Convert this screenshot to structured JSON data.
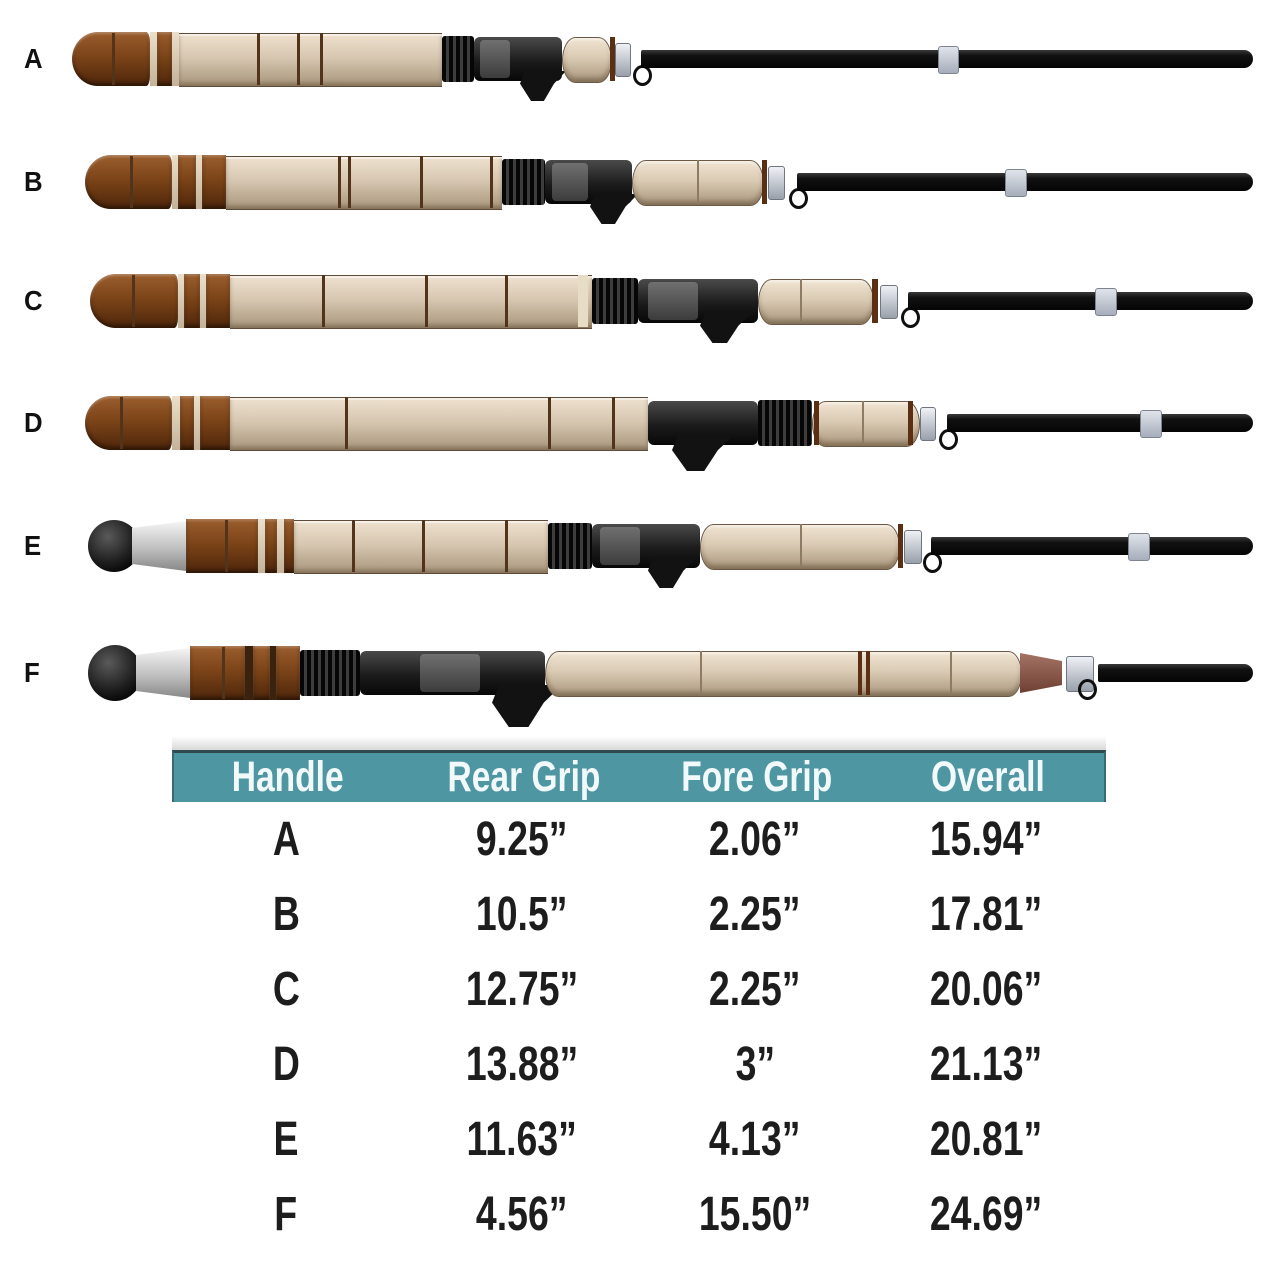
{
  "rods": {
    "labels": [
      "A",
      "B",
      "C",
      "D",
      "E",
      "F"
    ]
  },
  "table": {
    "columns": [
      "Handle",
      "Rear Grip",
      "Fore Grip",
      "Overall"
    ],
    "rows": [
      [
        "A",
        "9.25”",
        "2.06”",
        "15.94”"
      ],
      [
        "B",
        "10.5”",
        "2.25”",
        "17.81”"
      ],
      [
        "C",
        "12.75”",
        "2.25”",
        "20.06”"
      ],
      [
        "D",
        "13.88”",
        "3”",
        "21.13”"
      ],
      [
        "E",
        "11.63”",
        "4.13”",
        "20.81”"
      ],
      [
        "F",
        "4.56”",
        "15.50”",
        "24.69”"
      ]
    ],
    "header_bg": "#4f96a3",
    "header_text_color": "#f2f9fa",
    "body_text_color": "#1d1d1d"
  },
  "colors": {
    "grip_cream": "#d8c8b2",
    "grip_brown": "#7c4418",
    "blank_black": "#0d0d0d",
    "ferrule_grey": "#b7bec9",
    "butt_cap_silver": "#c9c9c9"
  }
}
